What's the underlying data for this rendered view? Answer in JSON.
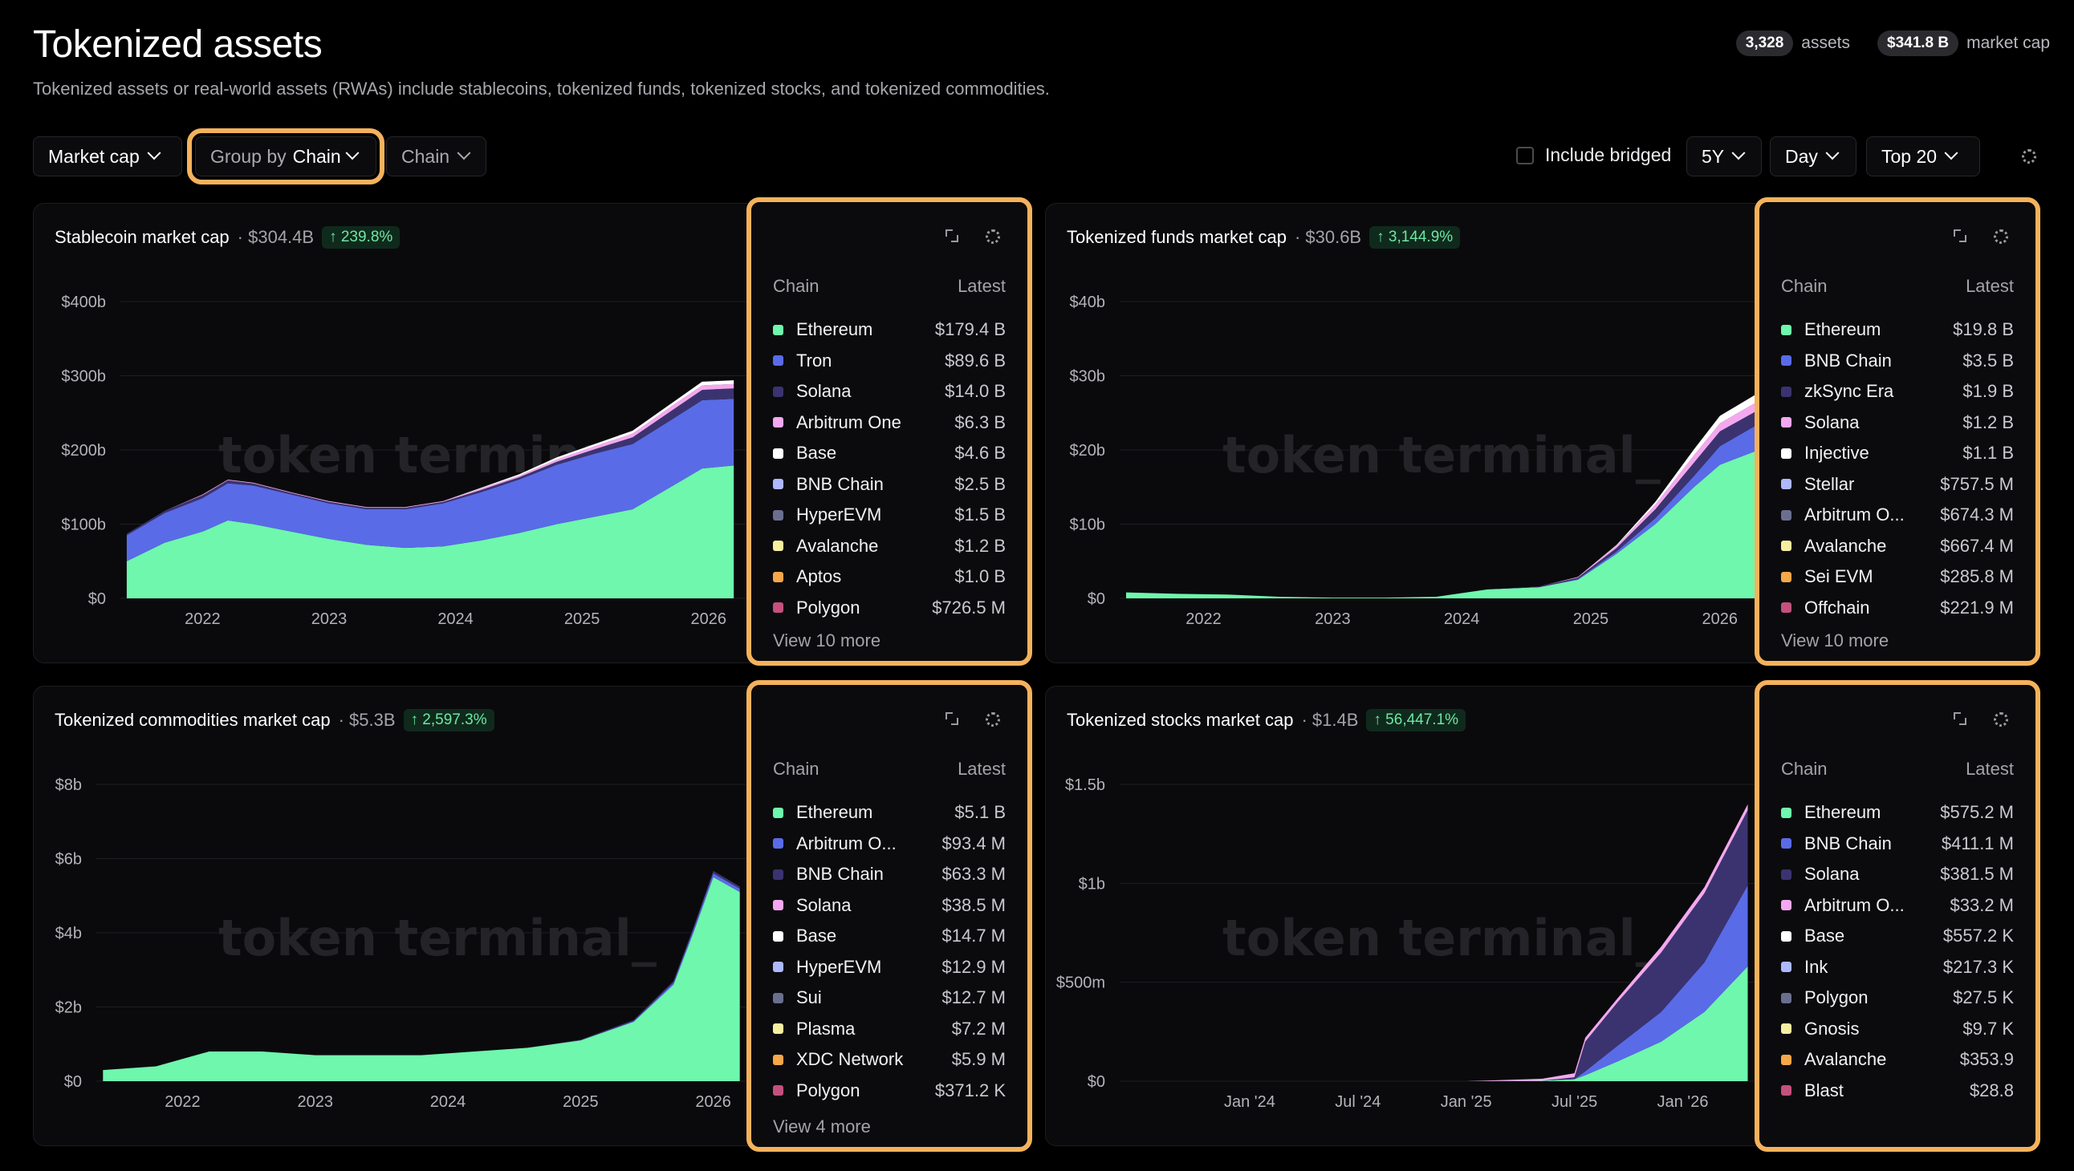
{
  "header": {
    "title": "Tokenized assets",
    "subtitle": "Tokenized assets or real-world assets (RWAs) include stablecoins, tokenized funds, tokenized stocks, and tokenized commodities.",
    "assets_count": "3,328",
    "assets_label": "assets",
    "market_cap": "$341.8 B",
    "market_cap_label": "market cap"
  },
  "toolbar": {
    "metric": "Market cap",
    "group_prefix": "Group by",
    "group_value": "Chain",
    "filter": "Chain",
    "include_bridged": "Include bridged",
    "range": "5Y",
    "granularity": "Day",
    "top": "Top 20"
  },
  "watermark": "token terminal_",
  "colors": {
    "accent": "#f5b25c",
    "series": [
      "#6ef7ad",
      "#5a6be8",
      "#3b3370",
      "#f4a8f0",
      "#ffffff",
      "#aeb8ff",
      "#6b6f8f",
      "#f7efa0",
      "#f5a74a",
      "#c4507e"
    ],
    "positive": "#6ee7a4"
  },
  "charts": [
    {
      "title": "Stablecoin market cap",
      "value": "· $304.4B",
      "change": "↑ 239.8%",
      "y_ticks": [
        "$400b",
        "$300b",
        "$200b",
        "$100b",
        "$0"
      ],
      "x_ticks": [
        "2022",
        "2023",
        "2024",
        "2025",
        "2026"
      ],
      "legend": {
        "col1": "Chain",
        "col2": "Latest",
        "rows": [
          {
            "name": "Ethereum",
            "value": "$179.4 B"
          },
          {
            "name": "Tron",
            "value": "$89.6 B"
          },
          {
            "name": "Solana",
            "value": "$14.0 B"
          },
          {
            "name": "Arbitrum One",
            "value": "$6.3 B"
          },
          {
            "name": "Base",
            "value": "$4.6 B"
          },
          {
            "name": "BNB Chain",
            "value": "$2.5 B"
          },
          {
            "name": "HyperEVM",
            "value": "$1.5 B"
          },
          {
            "name": "Avalanche",
            "value": "$1.2 B"
          },
          {
            "name": "Aptos",
            "value": "$1.0 B"
          },
          {
            "name": "Polygon",
            "value": "$726.5 M"
          }
        ],
        "more": "View 10 more"
      }
    },
    {
      "title": "Tokenized funds market cap",
      "value": "· $30.6B",
      "change": "↑ 3,144.9%",
      "y_ticks": [
        "$40b",
        "$30b",
        "$20b",
        "$10b",
        "$0"
      ],
      "x_ticks": [
        "2022",
        "2023",
        "2024",
        "2025",
        "2026"
      ],
      "legend": {
        "col1": "Chain",
        "col2": "Latest",
        "rows": [
          {
            "name": "Ethereum",
            "value": "$19.8 B"
          },
          {
            "name": "BNB Chain",
            "value": "$3.5 B"
          },
          {
            "name": "zkSync Era",
            "value": "$1.9 B"
          },
          {
            "name": "Solana",
            "value": "$1.2 B"
          },
          {
            "name": "Injective",
            "value": "$1.1 B"
          },
          {
            "name": "Stellar",
            "value": "$757.5 M"
          },
          {
            "name": "Arbitrum O...",
            "value": "$674.3 M"
          },
          {
            "name": "Avalanche",
            "value": "$667.4 M"
          },
          {
            "name": "Sei EVM",
            "value": "$285.8 M"
          },
          {
            "name": "Offchain",
            "value": "$221.9 M"
          }
        ],
        "more": "View 10 more"
      }
    },
    {
      "title": "Tokenized commodities market cap",
      "value": "· $5.3B",
      "change": "↑ 2,597.3%",
      "y_ticks": [
        "$8b",
        "$6b",
        "$4b",
        "$2b",
        "$0"
      ],
      "x_ticks": [
        "2022",
        "2023",
        "2024",
        "2025",
        "2026"
      ],
      "legend": {
        "col1": "Chain",
        "col2": "Latest",
        "rows": [
          {
            "name": "Ethereum",
            "value": "$5.1 B"
          },
          {
            "name": "Arbitrum O...",
            "value": "$93.4 M"
          },
          {
            "name": "BNB Chain",
            "value": "$63.3 M"
          },
          {
            "name": "Solana",
            "value": "$38.5 M"
          },
          {
            "name": "Base",
            "value": "$14.7 M"
          },
          {
            "name": "HyperEVM",
            "value": "$12.9 M"
          },
          {
            "name": "Sui",
            "value": "$12.7 M"
          },
          {
            "name": "Plasma",
            "value": "$7.2 M"
          },
          {
            "name": "XDC Network",
            "value": "$5.9 M"
          },
          {
            "name": "Polygon",
            "value": "$371.2 K"
          }
        ],
        "more": "View 4 more"
      }
    },
    {
      "title": "Tokenized stocks market cap",
      "value": "· $1.4B",
      "change": "↑ 56,447.1%",
      "y_ticks": [
        "$1.5b",
        "$1b",
        "$500m",
        "$0"
      ],
      "x_ticks": [
        "Jan '24",
        "Jul '24",
        "Jan '25",
        "Jul '25",
        "Jan '26"
      ],
      "legend": {
        "col1": "Chain",
        "col2": "Latest",
        "rows": [
          {
            "name": "Ethereum",
            "value": "$575.2 M"
          },
          {
            "name": "BNB Chain",
            "value": "$411.1 M"
          },
          {
            "name": "Solana",
            "value": "$381.5 M"
          },
          {
            "name": "Arbitrum O...",
            "value": "$33.2 M"
          },
          {
            "name": "Base",
            "value": "$557.2 K"
          },
          {
            "name": "Ink",
            "value": "$217.3 K"
          },
          {
            "name": "Polygon",
            "value": "$27.5 K"
          },
          {
            "name": "Gnosis",
            "value": "$9.7 K"
          },
          {
            "name": "Avalanche",
            "value": "$353.9"
          },
          {
            "name": "Blast",
            "value": "$28.8"
          }
        ]
      }
    }
  ],
  "chart_data": [
    {
      "type": "area",
      "title": "Stablecoin market cap",
      "ylim": [
        0,
        400
      ],
      "x": [
        2021.4,
        2021.7,
        2022.0,
        2022.2,
        2022.4,
        2022.7,
        2023.0,
        2023.3,
        2023.6,
        2023.9,
        2024.2,
        2024.5,
        2024.8,
        2025.1,
        2025.4,
        2025.7,
        2025.95,
        2026.2
      ],
      "series": [
        {
          "name": "Ethereum",
          "values": [
            50,
            75,
            90,
            105,
            100,
            90,
            80,
            72,
            68,
            70,
            78,
            88,
            100,
            110,
            120,
            150,
            175,
            179
          ]
        },
        {
          "name": "Tron",
          "values": [
            35,
            40,
            45,
            50,
            52,
            50,
            48,
            48,
            52,
            58,
            65,
            72,
            80,
            85,
            88,
            90,
            92,
            90
          ]
        },
        {
          "name": "Solana",
          "values": [
            2,
            3,
            4,
            4,
            3,
            2,
            2,
            2,
            2,
            2,
            3,
            3,
            4,
            6,
            9,
            12,
            14,
            14
          ]
        },
        {
          "name": "Arbitrum One",
          "values": [
            0,
            0,
            1,
            1,
            1,
            1,
            1,
            1,
            1,
            1,
            2,
            2,
            3,
            4,
            5,
            6,
            6,
            6
          ]
        },
        {
          "name": "Base",
          "values": [
            0,
            0,
            0,
            0,
            0,
            0,
            0,
            0,
            0,
            0,
            1,
            2,
            3,
            3,
            4,
            4,
            5,
            5
          ]
        }
      ]
    },
    {
      "type": "area",
      "title": "Tokenized funds market cap",
      "ylim": [
        0,
        40
      ],
      "x": [
        2021.4,
        2021.8,
        2022.2,
        2022.6,
        2023.0,
        2023.4,
        2023.8,
        2024.2,
        2024.6,
        2024.9,
        2025.2,
        2025.5,
        2025.8,
        2026.0,
        2026.3
      ],
      "series": [
        {
          "name": "Ethereum",
          "values": [
            0.8,
            0.6,
            0.5,
            0.2,
            0.1,
            0.1,
            0.2,
            1.2,
            1.5,
            2.5,
            6,
            10,
            15,
            18,
            20
          ]
        },
        {
          "name": "BNB Chain",
          "values": [
            0,
            0,
            0,
            0,
            0,
            0,
            0,
            0,
            0,
            0.1,
            0.3,
            0.8,
            1.5,
            2.5,
            3.5
          ]
        },
        {
          "name": "zkSync Era",
          "values": [
            0,
            0,
            0,
            0,
            0,
            0,
            0,
            0,
            0.1,
            0.2,
            0.5,
            1.2,
            1.8,
            2,
            1.9
          ]
        },
        {
          "name": "Solana",
          "values": [
            0,
            0,
            0,
            0,
            0,
            0,
            0,
            0,
            0,
            0.1,
            0.3,
            0.6,
            1,
            1.1,
            1.2
          ]
        },
        {
          "name": "Injective",
          "values": [
            0,
            0,
            0,
            0,
            0,
            0,
            0,
            0,
            0,
            0,
            0.1,
            0.4,
            0.8,
            1,
            1.1
          ]
        }
      ]
    },
    {
      "type": "area",
      "title": "Tokenized commodities market cap",
      "ylim": [
        0,
        8
      ],
      "x": [
        2021.4,
        2021.8,
        2022.2,
        2022.6,
        2023.0,
        2023.4,
        2023.8,
        2024.2,
        2024.6,
        2025.0,
        2025.4,
        2025.7,
        2025.85,
        2026.0,
        2026.2
      ],
      "series": [
        {
          "name": "Ethereum",
          "values": [
            0.3,
            0.4,
            0.8,
            0.8,
            0.7,
            0.7,
            0.7,
            0.8,
            0.9,
            1.1,
            1.6,
            2.6,
            4.0,
            5.5,
            5.1
          ]
        },
        {
          "name": "Arbitrum O...",
          "values": [
            0,
            0,
            0,
            0,
            0,
            0,
            0,
            0,
            0,
            0,
            0.02,
            0.05,
            0.08,
            0.1,
            0.09
          ]
        },
        {
          "name": "BNB Chain",
          "values": [
            0,
            0,
            0,
            0,
            0,
            0,
            0,
            0,
            0,
            0.02,
            0.03,
            0.05,
            0.06,
            0.07,
            0.06
          ]
        }
      ]
    },
    {
      "type": "area",
      "title": "Tokenized stocks market cap",
      "ylim": [
        0,
        1.5
      ],
      "x": [
        2023.8,
        2024.0,
        2024.5,
        2025.0,
        2025.35,
        2025.5,
        2025.55,
        2025.7,
        2025.9,
        2026.1,
        2026.3
      ],
      "series": [
        {
          "name": "Ethereum",
          "values": [
            0,
            0,
            0,
            0,
            0.002,
            0.01,
            0.03,
            0.1,
            0.2,
            0.35,
            0.58
          ]
        },
        {
          "name": "BNB Chain",
          "values": [
            0,
            0,
            0,
            0,
            0,
            0,
            0.02,
            0.08,
            0.15,
            0.25,
            0.41
          ]
        },
        {
          "name": "Solana",
          "values": [
            0,
            0,
            0,
            0,
            0,
            0.01,
            0.15,
            0.22,
            0.3,
            0.35,
            0.38
          ]
        },
        {
          "name": "Arbitrum O...",
          "values": [
            0,
            0,
            0,
            0,
            0.01,
            0.02,
            0.02,
            0.02,
            0.03,
            0.03,
            0.03
          ]
        }
      ]
    }
  ]
}
